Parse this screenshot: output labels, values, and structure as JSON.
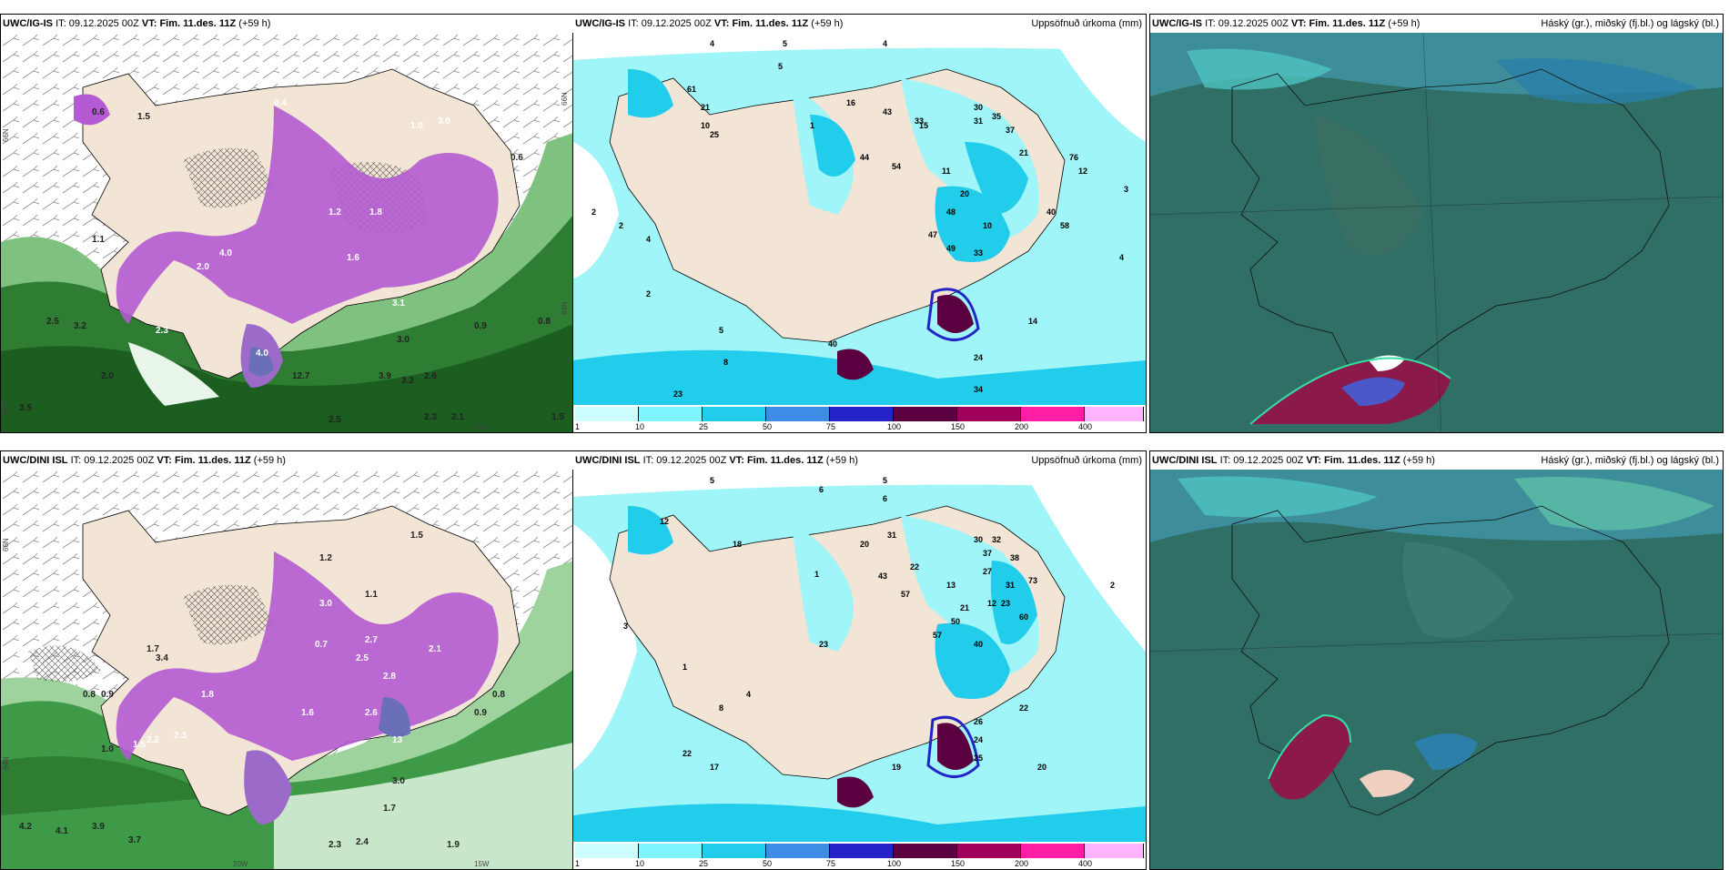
{
  "panels": [
    {
      "model": "UWC/IG-IS",
      "it_label": "IT:",
      "it_value": "09.12.2025 00Z",
      "vt_label": "VT:",
      "vt_value": "Fim. 11.des. 11Z",
      "lead": "(+59 h)",
      "right_title": ""
    },
    {
      "model": "UWC/IG-IS",
      "it_label": "IT:",
      "it_value": "09.12.2025 00Z",
      "vt_label": "VT:",
      "vt_value": "Fim. 11.des. 11Z",
      "lead": "(+59 h)",
      "right_title": "Uppsöfnuð úrkoma (mm)"
    },
    {
      "model": "UWC/IG-IS",
      "it_label": "IT:",
      "it_value": "09.12.2025 00Z",
      "vt_label": "VT:",
      "vt_value": "Fim. 11.des. 11Z",
      "lead": "(+59 h)",
      "right_title": "Háský (gr.), miðský (fj.bl.) og lágský (bl.)"
    },
    {
      "model": "UWC/DINI ISL",
      "it_label": "IT:",
      "it_value": "09.12.2025 00Z",
      "vt_label": "VT:",
      "vt_value": "Fim. 11.des. 11Z",
      "lead": "(+59 h)",
      "right_title": ""
    },
    {
      "model": "UWC/DINI ISL",
      "it_label": "IT:",
      "it_value": "09.12.2025 00Z",
      "vt_label": "VT:",
      "vt_value": "Fim. 11.des. 11Z",
      "lead": "(+59 h)",
      "right_title": "Uppsöfnuð úrkoma (mm)"
    },
    {
      "model": "UWC/DINI ISL",
      "it_label": "IT:",
      "it_value": "09.12.2025 00Z",
      "vt_label": "VT:",
      "vt_value": "Fim. 11.des. 11Z",
      "lead": "(+59 h)",
      "right_title": "Háský (gr.), miðský (fj.bl.) og lágský (bl.)"
    }
  ],
  "colorbar": {
    "ticks": [
      "1",
      "10",
      "25",
      "50",
      "75",
      "100",
      "150",
      "200",
      "400"
    ],
    "colors": [
      "#cdfdff",
      "#7ff6ff",
      "#21cdea",
      "#3d8de6",
      "#2323c8",
      "#5a0040",
      "#a0005a",
      "#ff1ea5",
      "#ffb4ff"
    ]
  },
  "map_colors": {
    "land": "#f3e5d6",
    "sea_precip": "#9ff5f8",
    "sea_dark": "#2f6f66",
    "green": "#2f8a3e",
    "purple": "#b45ad2"
  },
  "grid_labels": {
    "lat66": "66N",
    "lat64": "64N",
    "lon20": "20W",
    "lon15": "15W"
  },
  "top_left_labels": [
    "0.6",
    "1.5",
    "0.4",
    "1.0",
    "3.0",
    "0.6",
    "2.0",
    "1.8",
    "4.0",
    "1.6",
    "1.1",
    "2.3",
    "0.9",
    "3.2",
    "2.5",
    "4.0",
    "1.2",
    "3.1",
    "3.0",
    "2.0",
    "12.7",
    "3.9",
    "3.2",
    "2.6",
    "2.5",
    "2.3",
    "2.1",
    "1.5",
    "3.5",
    "0.8"
  ],
  "top_mid_labels": [
    "4",
    "5",
    "4",
    "5",
    "10",
    "21",
    "61",
    "2",
    "4",
    "1",
    "16",
    "43",
    "33",
    "30",
    "35",
    "37",
    "21",
    "31",
    "15",
    "44",
    "54",
    "12",
    "76",
    "11",
    "20",
    "48",
    "40",
    "58",
    "10",
    "47",
    "49",
    "33",
    "25",
    "40",
    "24",
    "14",
    "34",
    "23",
    "8",
    "5",
    "2",
    "3",
    "4",
    "2"
  ],
  "bot_left_labels": [
    "1.2",
    "1.1",
    "0.7",
    "3.0",
    "2.7",
    "2.1",
    "1.5",
    "1.7",
    "3.4",
    "1.6",
    "1.8",
    "2.3",
    "2.2",
    "1.5",
    "0.8",
    "0.9",
    "1.0",
    "2.5",
    "2.8",
    "2.6",
    "13",
    "0.8",
    "0.9",
    "3.0",
    "4.2",
    "1.7",
    "4.1",
    "3.9",
    "3.7",
    "2.3",
    "2.4",
    "1.9"
  ],
  "bot_mid_labels": [
    "5",
    "6",
    "5",
    "6",
    "1",
    "12",
    "18",
    "20",
    "31",
    "43",
    "57",
    "22",
    "13",
    "30",
    "32",
    "37",
    "38",
    "27",
    "73",
    "50",
    "21",
    "23",
    "31",
    "60",
    "12",
    "57",
    "40",
    "23",
    "26",
    "22",
    "24",
    "25",
    "20",
    "19",
    "22",
    "17",
    "8",
    "1",
    "4",
    "3",
    "2"
  ]
}
